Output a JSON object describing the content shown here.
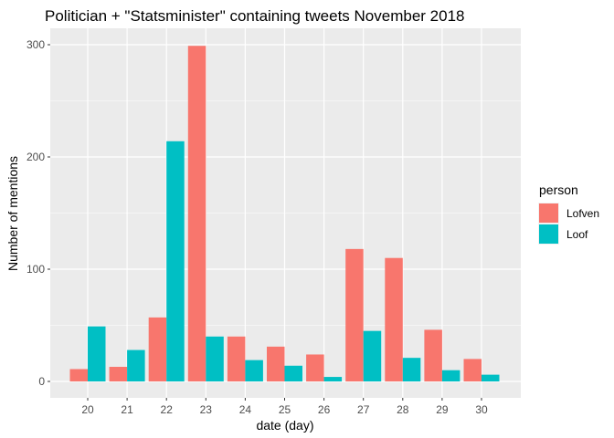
{
  "chart_data": {
    "type": "bar",
    "title": "Politician + \"Statsminister\" containing tweets November 2018",
    "xlabel": "date (day)",
    "ylabel": "Number of mentions",
    "categories": [
      "20",
      "21",
      "22",
      "23",
      "24",
      "25",
      "26",
      "27",
      "28",
      "29",
      "30"
    ],
    "series": [
      {
        "name": "Lofven",
        "color": "#F8766D",
        "values": [
          11,
          13,
          57,
          299,
          40,
          31,
          24,
          118,
          110,
          46,
          20
        ]
      },
      {
        "name": "Loof",
        "color": "#00BFC4",
        "values": [
          49,
          28,
          214,
          40,
          19,
          14,
          4,
          45,
          21,
          10,
          6
        ]
      }
    ],
    "ylim": [
      0,
      320
    ],
    "yticks": [
      0,
      100,
      200,
      300
    ],
    "grid": true,
    "legend": {
      "title": "person",
      "position": "right"
    },
    "colors": {
      "panel_bg": "#EBEBEB",
      "gridline": "#FFFFFF"
    }
  }
}
